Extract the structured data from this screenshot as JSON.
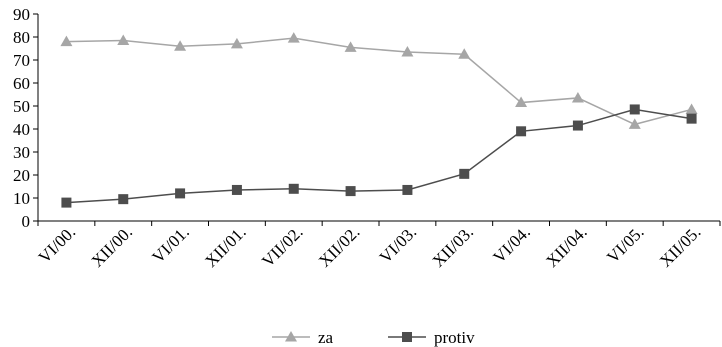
{
  "chart_data": {
    "type": "line",
    "title": "",
    "xlabel": "",
    "ylabel": "",
    "categories": [
      "VI/00.",
      "XII/00.",
      "VI/01.",
      "XII/01.",
      "VII/02.",
      "XII/02.",
      "VI/03.",
      "XII/03.",
      "VI/04.",
      "XII/04.",
      "VI/05.",
      "XII/05."
    ],
    "ylim": [
      0,
      90
    ],
    "yticks": [
      0,
      10,
      20,
      30,
      40,
      50,
      60,
      70,
      80,
      90
    ],
    "grid": false,
    "legend_position": "bottom",
    "series": [
      {
        "name": "za",
        "values": [
          78,
          78.5,
          76,
          77,
          79.5,
          75.5,
          73.5,
          72.5,
          51.5,
          53.5,
          42,
          48.5
        ],
        "color": "#a6a6a6",
        "marker": "triangle"
      },
      {
        "name": "protiv",
        "values": [
          8,
          9.5,
          12,
          13.5,
          14,
          13,
          13.5,
          20.5,
          39,
          41.5,
          48.5,
          44.5
        ],
        "color": "#4d4d4d",
        "marker": "square"
      }
    ]
  }
}
